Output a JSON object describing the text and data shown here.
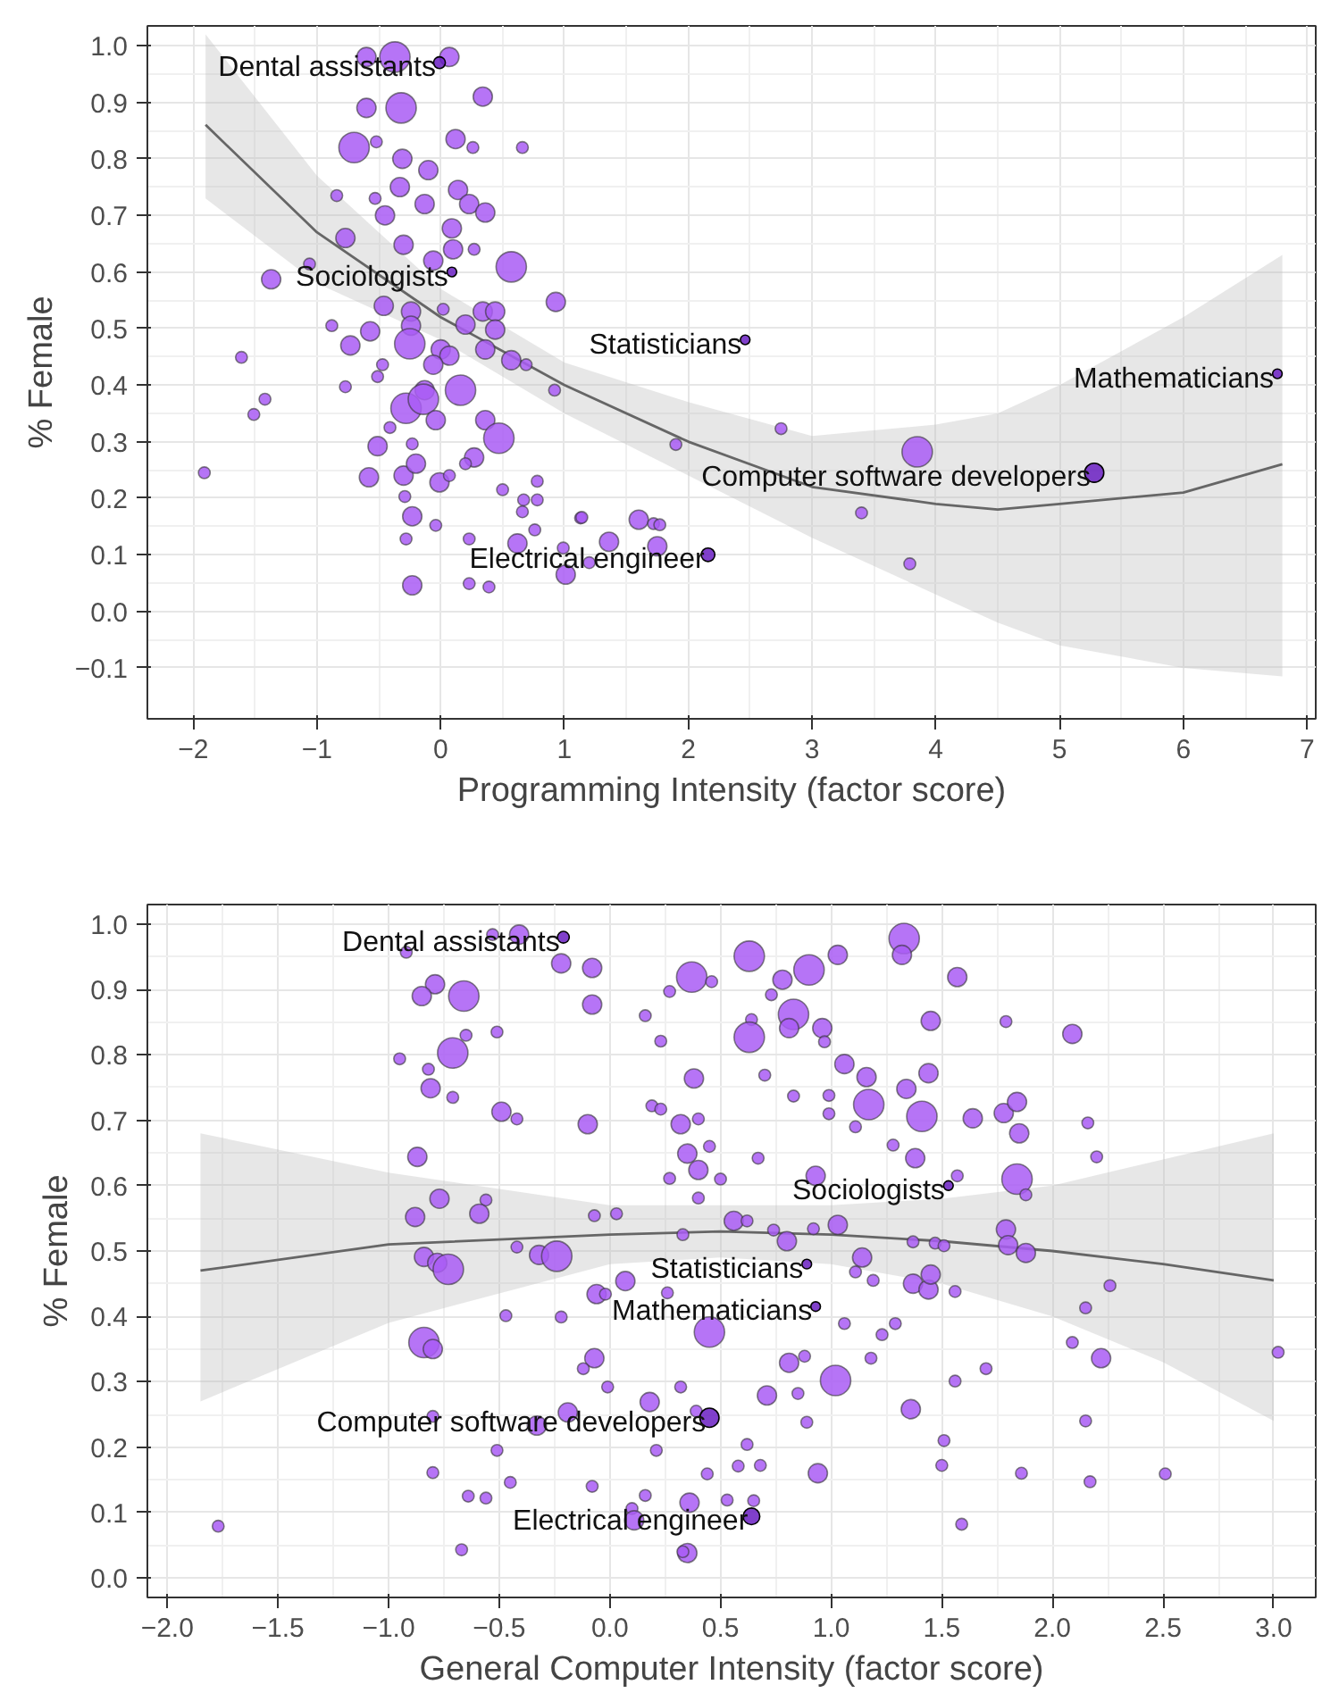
{
  "chart_data": [
    {
      "type": "bubble",
      "xlabel": "Programming Intensity (factor score)",
      "ylabel": "% Female",
      "grid": true,
      "xlim": [
        -2.37,
        7.07
      ],
      "ylim": [
        -0.19,
        1.035
      ],
      "xticks": [
        {
          "value": -2,
          "label": "−2"
        },
        {
          "value": -1,
          "label": "−1"
        },
        0,
        1,
        2,
        3,
        4,
        5,
        6,
        7
      ],
      "yticks": [
        {
          "value": -0.1,
          "label": "−0.1"
        },
        {
          "value": 0,
          "label": "0.0"
        },
        0.1,
        0.2,
        0.3,
        0.4,
        0.5,
        0.6,
        0.7,
        0.8,
        0.9,
        {
          "value": 1,
          "label": "1.0"
        }
      ],
      "series": [
        {
          "color": "#a95cf5",
          "x": [
            -0.6,
            -0.37,
            0.07,
            0.34,
            -0.6,
            -0.32,
            -0.7,
            -0.52,
            0.12,
            0.26,
            0.66,
            -0.31,
            -0.33,
            -0.1,
            -0.84,
            -0.53,
            0.14,
            0.23,
            0.36,
            -0.45,
            -0.13,
            0.09,
            -0.3,
            0.1,
            0.27,
            -0.77,
            -0.06,
            0.57,
            -1.06,
            -1.37,
            -0.46,
            -0.24,
            0.02,
            0.34,
            0.44,
            0.93,
            -0.88,
            -0.57,
            -0.24,
            0.2,
            0.44,
            -0.73,
            -0.25,
            0.0,
            0.07,
            0.36,
            0.57,
            0.69,
            0.92,
            -1.61,
            -0.06,
            -0.47,
            -0.51,
            -0.77,
            -0.13,
            0.16,
            -1.42,
            -1.51,
            -0.28,
            -0.14,
            -0.04,
            0.36,
            0.47,
            -0.41,
            -0.23,
            -0.51,
            0.27,
            -1.91,
            -0.58,
            -0.3,
            -0.2,
            -0.01,
            0.07,
            0.2,
            0.5,
            -0.29,
            -0.23,
            -0.04,
            0.67,
            0.78,
            0.78,
            0.66,
            0.76,
            1.13,
            -0.28,
            0.23,
            0.62,
            0.99,
            -0.23,
            0.23,
            0.39,
            1.9,
            2.75,
            3.85,
            3.4,
            3.79,
            1.14,
            1.6,
            1.72,
            1.77,
            1.36,
            1.75,
            1.2,
            1.01
          ],
          "values": [
            0.98,
            0.98,
            0.98,
            0.91,
            0.89,
            0.89,
            0.82,
            0.83,
            0.835,
            0.82,
            0.82,
            0.8,
            0.75,
            0.78,
            0.735,
            0.73,
            0.745,
            0.72,
            0.705,
            0.7,
            0.72,
            0.677,
            0.648,
            0.64,
            0.64,
            0.66,
            0.62,
            0.609,
            0.614,
            0.587,
            0.54,
            0.53,
            0.534,
            0.53,
            0.53,
            0.547,
            0.505,
            0.495,
            0.505,
            0.507,
            0.498,
            0.47,
            0.473,
            0.463,
            0.452,
            0.463,
            0.444,
            0.436,
            0.391,
            0.449,
            0.436,
            0.436,
            0.415,
            0.397,
            0.391,
            0.391,
            0.375,
            0.348,
            0.359,
            0.375,
            0.338,
            0.338,
            0.306,
            0.325,
            0.296,
            0.292,
            0.272,
            0.245,
            0.237,
            0.24,
            0.261,
            0.228,
            0.24,
            0.261,
            0.215,
            0.203,
            0.168,
            0.152,
            0.197,
            0.23,
            0.197,
            0.176,
            0.144,
            0.165,
            0.128,
            0.128,
            0.12,
            0.112,
            0.046,
            0.049,
            0.043,
            0.295,
            0.323,
            0.282,
            0.174,
            0.084,
            0.166,
            0.162,
            0.155,
            0.153,
            0.123,
            0.115,
            0.086,
            0.065
          ],
          "sizes": [
            0.4,
            1,
            0.4,
            0.4,
            0.4,
            1,
            1,
            0.15,
            0.4,
            0.15,
            0.15,
            0.4,
            0.4,
            0.4,
            0.15,
            0.15,
            0.4,
            0.4,
            0.4,
            0.4,
            0.4,
            0.4,
            0.4,
            0.4,
            0.15,
            0.4,
            0.4,
            1,
            0.15,
            0.4,
            0.4,
            0.4,
            0.15,
            0.4,
            0.4,
            0.4,
            0.15,
            0.4,
            0.4,
            0.4,
            0.4,
            0.4,
            1,
            0.4,
            0.4,
            0.4,
            0.4,
            0.15,
            0.15,
            0.15,
            0.4,
            0.15,
            0.15,
            0.15,
            0.4,
            1,
            0.15,
            0.15,
            1,
            1,
            0.4,
            0.4,
            1,
            0.15,
            0.15,
            0.4,
            0.4,
            0.15,
            0.4,
            0.4,
            0.4,
            0.4,
            0.15,
            0.15,
            0.15,
            0.15,
            0.4,
            0.15,
            0.15,
            0.15,
            0.15,
            0.15,
            0.15,
            0.15,
            0.15,
            0.15,
            0.4,
            0.15,
            0.4,
            0.15,
            0.15,
            0.15,
            0.15,
            1,
            0.15,
            0.15,
            0.15,
            0.4,
            0.15,
            0.15,
            0.4,
            0.4,
            0.15,
            0.4
          ]
        },
        {
          "color": "#6a1fc2",
          "x": [
            -0.01,
            0.09,
            2.46,
            6.76,
            5.28,
            2.16
          ],
          "values": [
            0.97,
            0.6,
            0.48,
            0.42,
            0.245,
            0.1
          ],
          "sizes": [
            0.15,
            0.1,
            0.1,
            0.1,
            0.4,
            0.2
          ]
        },
        {
          "type": "line",
          "color": "#666666",
          "x": [
            -1.9,
            -1,
            0,
            1,
            2,
            3,
            4,
            4.5,
            5,
            6,
            6.8
          ],
          "values": [
            0.86,
            0.67,
            0.52,
            0.4,
            0.3,
            0.22,
            0.19,
            0.18,
            0.19,
            0.21,
            0.26
          ],
          "lower": [
            0.73,
            0.58,
            0.48,
            0.35,
            0.24,
            0.13,
            0.03,
            -0.02,
            -0.06,
            -0.1,
            -0.115
          ],
          "upper": [
            1.02,
            0.77,
            0.57,
            0.44,
            0.37,
            0.31,
            0.33,
            0.35,
            0.4,
            0.52,
            0.63
          ]
        }
      ],
      "annotations": [
        {
          "text": "Dental assistants",
          "x": -0.01,
          "y": 0.97
        },
        {
          "text": "Sociologists",
          "x": 0.09,
          "y": 0.6
        },
        {
          "text": "Statisticians",
          "x": 2.46,
          "y": 0.48
        },
        {
          "text": "Mathematicians",
          "x": 6.76,
          "y": 0.42
        },
        {
          "text": "Computer software developers",
          "x": 5.28,
          "y": 0.245
        },
        {
          "text": "Electrical engineer",
          "x": 2.16,
          "y": 0.1
        }
      ]
    },
    {
      "type": "bubble",
      "xlabel": "General Computer Intensity (factor score)",
      "ylabel": "% Female",
      "grid": true,
      "xlim": [
        -2.09,
        3.19
      ],
      "ylim": [
        -0.03,
        1.03
      ],
      "xticks": [
        {
          "value": -2,
          "label": "−2.0"
        },
        {
          "value": -1.5,
          "label": "−1.5"
        },
        {
          "value": -1,
          "label": "−1.0"
        },
        {
          "value": -0.5,
          "label": "−0.5"
        },
        {
          "value": 0,
          "label": "0.0"
        },
        0.5,
        {
          "value": 1,
          "label": "1.0"
        },
        1.5,
        {
          "value": 2,
          "label": "2.0"
        },
        2.5,
        {
          "value": 3,
          "label": "3.0"
        }
      ],
      "yticks": [
        {
          "value": 0,
          "label": "0.0"
        },
        0.1,
        0.2,
        0.3,
        0.4,
        0.5,
        0.6,
        0.7,
        0.8,
        0.9,
        {
          "value": 1,
          "label": "1.0"
        }
      ],
      "series": [
        {
          "color": "#a95cf5",
          "x": [
            -0.53,
            -0.41,
            -0.92,
            -0.79,
            -0.85,
            -0.66,
            -0.22,
            -0.08,
            -0.08,
            0.37,
            0.46,
            0.27,
            -0.65,
            -0.51,
            -0.71,
            -0.95,
            -0.82,
            -0.81,
            -0.71,
            0.16,
            0.23,
            0.38,
            -0.49,
            -0.42,
            -0.1,
            0.19,
            0.23,
            0.32,
            0.4,
            0.45,
            0.35,
            0.4,
            -0.87,
            0.27,
            0.5,
            0.4,
            -0.77,
            -0.56,
            -0.88,
            -0.59,
            -0.07,
            0.03,
            0.56,
            0.33,
            -0.42,
            -0.32,
            -0.24,
            -0.84,
            -0.78,
            -0.73,
            0.07,
            -0.06,
            -0.02,
            0.26,
            -0.47,
            -0.22,
            0.45,
            -0.84,
            -0.8,
            -0.07,
            -0.12,
            -0.01,
            0.32,
            0.18,
            -0.19,
            0.39,
            -0.8,
            -0.33,
            -0.51,
            0.21,
            -0.8,
            -0.45,
            0.44,
            0.58,
            -0.08,
            -0.64,
            -0.56,
            0.16,
            0.36,
            0.1,
            0.53,
            -1.77,
            -0.67,
            0.11,
            0.35,
            0.33,
            1.33,
            1.32,
            0.63,
            1.03,
            1.57,
            0.78,
            0.9,
            0.73,
            0.83,
            0.64,
            0.81,
            0.63,
            0.96,
            0.97,
            1.45,
            1.79,
            2.09,
            0.7,
            1.06,
            1.16,
            1.44,
            0.83,
            0.99,
            1.17,
            1.34,
            0.99,
            1.41,
            1.64,
            1.78,
            1.84,
            1.85,
            1.11,
            1.28,
            1.38,
            2.16,
            2.2,
            0.67,
            0.93,
            1.57,
            1.84,
            1.88,
            0.62,
            0.74,
            0.92,
            1.03,
            0.8,
            1.37,
            1.47,
            1.51,
            1.79,
            1.8,
            1.88,
            1.14,
            1.11,
            1.19,
            1.37,
            1.44,
            1.45,
            1.56,
            2.26,
            2.15,
            1.06,
            1.29,
            1.23,
            1.18,
            0.81,
            0.88,
            2.09,
            2.22,
            1.02,
            0.71,
            0.85,
            1.56,
            1.7,
            1.36,
            0.89,
            2.15,
            1.51,
            1.5,
            1.86,
            2.17,
            2.51,
            0.94,
            0.68,
            0.62,
            0.65,
            1.59,
            3.02
          ],
          "values": [
            0.984,
            0.984,
            0.957,
            0.908,
            0.89,
            0.89,
            0.94,
            0.933,
            0.877,
            0.919,
            0.912,
            0.897,
            0.83,
            0.835,
            0.803,
            0.794,
            0.778,
            0.749,
            0.735,
            0.86,
            0.821,
            0.764,
            0.713,
            0.702,
            0.694,
            0.722,
            0.717,
            0.694,
            0.702,
            0.66,
            0.649,
            0.624,
            0.644,
            0.611,
            0.61,
            0.581,
            0.58,
            0.578,
            0.552,
            0.557,
            0.554,
            0.557,
            0.546,
            0.525,
            0.506,
            0.494,
            0.492,
            0.491,
            0.482,
            0.472,
            0.454,
            0.434,
            0.434,
            0.436,
            0.401,
            0.399,
            0.376,
            0.36,
            0.35,
            0.336,
            0.32,
            0.292,
            0.292,
            0.269,
            0.253,
            0.255,
            0.247,
            0.233,
            0.195,
            0.195,
            0.161,
            0.146,
            0.159,
            0.171,
            0.14,
            0.125,
            0.122,
            0.126,
            0.115,
            0.106,
            0.119,
            0.079,
            0.043,
            0.088,
            0.038,
            0.04,
            0.978,
            0.953,
            0.951,
            0.953,
            0.919,
            0.915,
            0.93,
            0.892,
            0.862,
            0.854,
            0.841,
            0.827,
            0.841,
            0.82,
            0.852,
            0.851,
            0.832,
            0.769,
            0.786,
            0.766,
            0.772,
            0.737,
            0.738,
            0.724,
            0.748,
            0.71,
            0.706,
            0.703,
            0.711,
            0.728,
            0.68,
            0.69,
            0.662,
            0.642,
            0.696,
            0.644,
            0.642,
            0.615,
            0.615,
            0.61,
            0.586,
            0.546,
            0.532,
            0.534,
            0.54,
            0.515,
            0.514,
            0.512,
            0.508,
            0.533,
            0.509,
            0.497,
            0.49,
            0.468,
            0.455,
            0.45,
            0.441,
            0.464,
            0.438,
            0.447,
            0.413,
            0.389,
            0.389,
            0.372,
            0.336,
            0.329,
            0.339,
            0.36,
            0.336,
            0.302,
            0.279,
            0.282,
            0.301,
            0.32,
            0.258,
            0.238,
            0.24,
            0.21,
            0.172,
            0.16,
            0.147,
            0.159,
            0.16,
            0.172,
            0.204,
            0.118,
            0.082,
            0.345
          ],
          "sizes": [
            0.15,
            0.4,
            0.15,
            0.4,
            0.4,
            1,
            0.4,
            0.4,
            0.4,
            1,
            0.15,
            0.15,
            0.15,
            0.15,
            1,
            0.15,
            0.15,
            0.4,
            0.15,
            0.15,
            0.15,
            0.4,
            0.4,
            0.15,
            0.4,
            0.15,
            0.15,
            0.4,
            0.15,
            0.15,
            0.4,
            0.4,
            0.4,
            0.15,
            0.15,
            0.15,
            0.4,
            0.15,
            0.4,
            0.4,
            0.15,
            0.15,
            0.4,
            0.15,
            0.15,
            0.4,
            1,
            0.4,
            0.4,
            1,
            0.4,
            0.4,
            0.15,
            0.15,
            0.15,
            0.15,
            1,
            1,
            0.4,
            0.4,
            0.15,
            0.15,
            0.15,
            0.4,
            0.4,
            0.15,
            0.15,
            0.4,
            0.15,
            0.15,
            0.15,
            0.15,
            0.15,
            0.15,
            0.15,
            0.15,
            0.15,
            0.15,
            0.4,
            0.15,
            0.15,
            0.15,
            0.15,
            0.4,
            0.4,
            0.15,
            1,
            0.4,
            1,
            0.4,
            0.4,
            0.4,
            1,
            0.15,
            1,
            0.15,
            0.4,
            1,
            0.4,
            0.15,
            0.4,
            0.15,
            0.4,
            0.15,
            0.4,
            0.4,
            0.4,
            0.15,
            0.15,
            1,
            0.4,
            0.15,
            1,
            0.4,
            0.4,
            0.4,
            0.4,
            0.15,
            0.15,
            0.4,
            0.15,
            0.15,
            0.15,
            0.4,
            0.15,
            1,
            0.15,
            0.15,
            0.15,
            0.15,
            0.4,
            0.4,
            0.15,
            0.15,
            0.15,
            0.4,
            0.4,
            0.4,
            0.4,
            0.15,
            0.15,
            0.4,
            0.4,
            0.4,
            0.15,
            0.15,
            0.15,
            0.15,
            0.15,
            0.15,
            0.15,
            0.4,
            0.15,
            0.15,
            0.4,
            1,
            0.4,
            0.15,
            0.15,
            0.15,
            0.4,
            0.15,
            0.15,
            0.15,
            0.15,
            0.15,
            0.15,
            0.15,
            0.4,
            0.15,
            0.15,
            0.15,
            0.15,
            0.15
          ]
        },
        {
          "color": "#6a1fc2",
          "x": [
            -0.21,
            1.53,
            0.89,
            0.93,
            0.45,
            0.64
          ],
          "values": [
            0.98,
            0.6,
            0.48,
            0.415,
            0.245,
            0.094
          ],
          "sizes": [
            0.15,
            0.1,
            0.1,
            0.1,
            0.4,
            0.3
          ]
        },
        {
          "type": "line",
          "color": "#666666",
          "x": [
            -1.85,
            -1,
            0,
            0.5,
            1,
            1.5,
            2,
            2.5,
            3.0
          ],
          "values": [
            0.47,
            0.51,
            0.525,
            0.53,
            0.525,
            0.515,
            0.5,
            0.48,
            0.455
          ],
          "lower": [
            0.27,
            0.39,
            0.48,
            0.49,
            0.48,
            0.45,
            0.4,
            0.33,
            0.24
          ],
          "upper": [
            0.68,
            0.62,
            0.57,
            0.57,
            0.57,
            0.58,
            0.6,
            0.64,
            0.68
          ]
        }
      ],
      "annotations": [
        {
          "text": "Dental assistants",
          "x": -0.21,
          "y": 0.98
        },
        {
          "text": "Sociologists",
          "x": 1.53,
          "y": 0.6
        },
        {
          "text": "Statisticians",
          "x": 0.89,
          "y": 0.48
        },
        {
          "text": "Mathematicians",
          "x": 0.93,
          "y": 0.415
        },
        {
          "text": "Computer software developers",
          "x": 0.45,
          "y": 0.245
        },
        {
          "text": "Electrical engineer",
          "x": 0.64,
          "y": 0.094
        }
      ]
    }
  ]
}
